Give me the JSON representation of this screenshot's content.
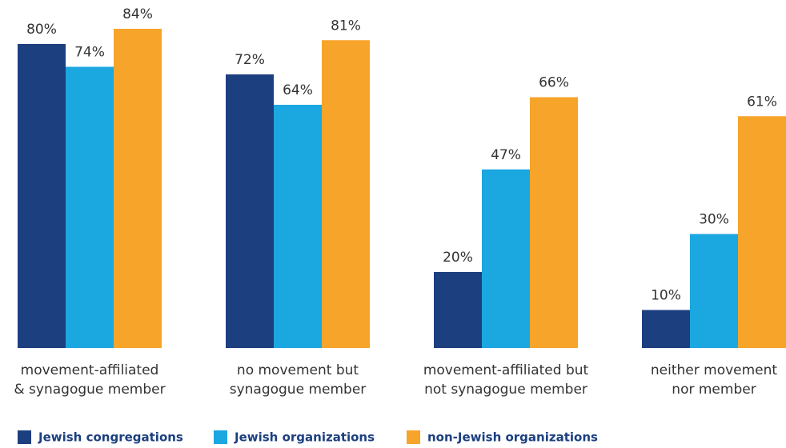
{
  "chart_data": {
    "type": "bar",
    "categories": [
      [
        "movement-affiliated",
        "& synagogue member"
      ],
      [
        "no movement but",
        "synagogue member"
      ],
      [
        "movement-affiliated but",
        "not synagogue member"
      ],
      [
        "neither movement",
        "nor member"
      ]
    ],
    "series": [
      {
        "name": "Jewish congregations",
        "color": "#1c3f80",
        "values": [
          80,
          72,
          20,
          10
        ],
        "value_labels": [
          "80%",
          "72%",
          "20%",
          "10%"
        ]
      },
      {
        "name": "Jewish organizations",
        "color": "#1ba7e0",
        "values": [
          74,
          64,
          47,
          30
        ],
        "value_labels": [
          "74%",
          "64%",
          "47%",
          "30%"
        ]
      },
      {
        "name": "non-Jewish organizations",
        "color": "#f7a42a",
        "values": [
          84,
          81,
          66,
          61
        ],
        "value_labels": [
          "84%",
          "81%",
          "66%",
          "61%"
        ]
      }
    ]
  }
}
